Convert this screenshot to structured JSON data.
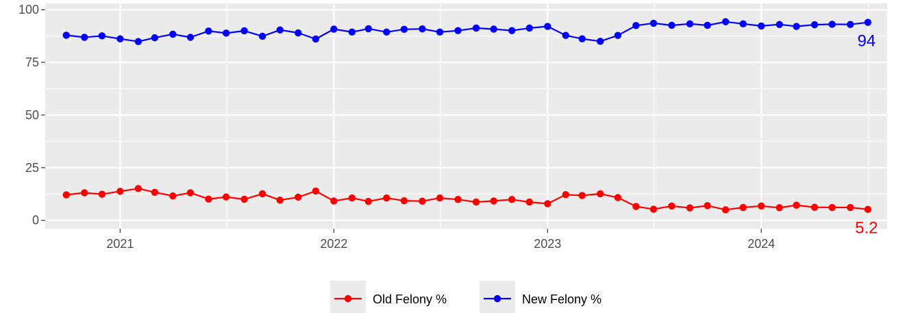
{
  "chart_data": {
    "type": "line",
    "title": "",
    "xlabel": "",
    "ylabel": "",
    "x_ticks": [
      "2021",
      "2022",
      "2023",
      "2024"
    ],
    "y_ticks": [
      "0",
      "25",
      "50",
      "75",
      "100"
    ],
    "ylim": [
      -4,
      103
    ],
    "xlim": [
      "2020-08-26",
      "2024-08-03"
    ],
    "grid": true,
    "legend_position": "bottom",
    "dates": [
      "2020-10-01",
      "2020-11-01",
      "2020-12-01",
      "2021-01-01",
      "2021-02-01",
      "2021-03-01",
      "2021-04-01",
      "2021-05-01",
      "2021-06-01",
      "2021-07-01",
      "2021-08-01",
      "2021-09-01",
      "2021-10-01",
      "2021-11-01",
      "2021-12-01",
      "2022-01-01",
      "2022-02-01",
      "2022-03-01",
      "2022-04-01",
      "2022-05-01",
      "2022-06-01",
      "2022-07-01",
      "2022-08-01",
      "2022-09-01",
      "2022-10-01",
      "2022-11-01",
      "2022-12-01",
      "2023-01-01",
      "2023-02-01",
      "2023-03-01",
      "2023-04-01",
      "2023-05-01",
      "2023-06-01",
      "2023-07-01",
      "2023-08-01",
      "2023-09-01",
      "2023-10-01",
      "2023-11-01",
      "2023-12-01",
      "2024-01-01",
      "2024-02-01",
      "2024-03-01",
      "2024-04-01",
      "2024-05-01",
      "2024-06-01",
      "2024-07-01"
    ],
    "series": [
      {
        "name": "Old Felony %",
        "color": "#ff0000",
        "end_label": "5.2",
        "values": [
          12.1,
          13.1,
          12.4,
          13.8,
          15.1,
          13.3,
          11.6,
          13.1,
          10.1,
          11.1,
          10.0,
          12.6,
          9.6,
          11.0,
          13.9,
          9.2,
          10.6,
          9.0,
          10.6,
          9.3,
          9.1,
          10.6,
          9.9,
          8.7,
          9.2,
          9.9,
          8.7,
          7.9,
          12.2,
          11.8,
          12.6,
          10.8,
          6.6,
          5.3,
          6.8,
          5.9,
          7.0,
          5.0,
          6.1,
          6.8,
          6.0,
          7.2,
          6.2,
          6.1,
          6.1,
          5.2
        ]
      },
      {
        "name": "New Felony %",
        "color": "#0000ff",
        "end_label": "94",
        "values": [
          87.9,
          86.9,
          87.6,
          86.2,
          84.9,
          86.7,
          88.4,
          86.9,
          89.9,
          88.9,
          90.0,
          87.4,
          90.4,
          89.0,
          86.1,
          90.8,
          89.4,
          91.0,
          89.4,
          90.7,
          90.9,
          89.4,
          90.1,
          91.3,
          90.8,
          90.1,
          91.3,
          92.1,
          87.8,
          86.2,
          85.0,
          87.8,
          92.5,
          93.6,
          92.6,
          93.3,
          92.6,
          94.3,
          93.3,
          92.3,
          93.0,
          92.1,
          92.9,
          93.1,
          93.0,
          94.0
        ]
      }
    ]
  }
}
